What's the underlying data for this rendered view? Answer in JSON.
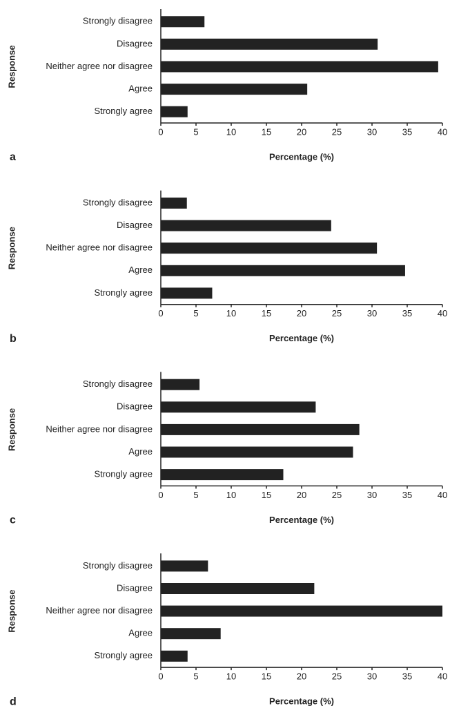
{
  "chart_data": [
    {
      "type": "bar",
      "orientation": "horizontal",
      "label": "a",
      "ylabel": "Response",
      "xlabel": "Percentage (%)",
      "categories": [
        "Strongly disagree",
        "Disagree",
        "Neither agree nor disagree",
        "Agree",
        "Strongly agree"
      ],
      "values": [
        6.2,
        30.8,
        39.4,
        20.8,
        3.8
      ],
      "color": "#222222",
      "xlim": [
        0,
        40
      ],
      "xticks": [
        0,
        5,
        10,
        15,
        20,
        25,
        30,
        35,
        40
      ],
      "grid": false
    },
    {
      "type": "bar",
      "orientation": "horizontal",
      "label": "b",
      "ylabel": "Response",
      "xlabel": "Percentage (%)",
      "categories": [
        "Strongly disagree",
        "Disagree",
        "Neither agree nor disagree",
        "Agree",
        "Strongly agree"
      ],
      "values": [
        3.7,
        24.2,
        30.7,
        34.7,
        7.3
      ],
      "color": "#222222",
      "xlim": [
        0,
        40
      ],
      "xticks": [
        0,
        5,
        10,
        15,
        20,
        25,
        30,
        35,
        40
      ],
      "grid": false
    },
    {
      "type": "bar",
      "orientation": "horizontal",
      "label": "c",
      "ylabel": "Response",
      "xlabel": "Percentage (%)",
      "categories": [
        "Strongly disagree",
        "Disagree",
        "Neither agree nor disagree",
        "Agree",
        "Strongly agree"
      ],
      "values": [
        5.5,
        22.0,
        28.2,
        27.3,
        17.4
      ],
      "color": "#222222",
      "xlim": [
        0,
        40
      ],
      "xticks": [
        0,
        5,
        10,
        15,
        20,
        25,
        30,
        35,
        40
      ],
      "grid": false
    },
    {
      "type": "bar",
      "orientation": "horizontal",
      "label": "d",
      "ylabel": "Response",
      "xlabel": "Percentage (%)",
      "categories": [
        "Strongly disagree",
        "Disagree",
        "Neither agree nor disagree",
        "Agree",
        "Strongly agree"
      ],
      "values": [
        6.7,
        21.8,
        40,
        8.5,
        3.8
      ],
      "color": "#222222",
      "xlim": [
        0,
        40
      ],
      "xticks": [
        0,
        5,
        10,
        15,
        20,
        25,
        30,
        35,
        40
      ],
      "grid": false
    }
  ]
}
